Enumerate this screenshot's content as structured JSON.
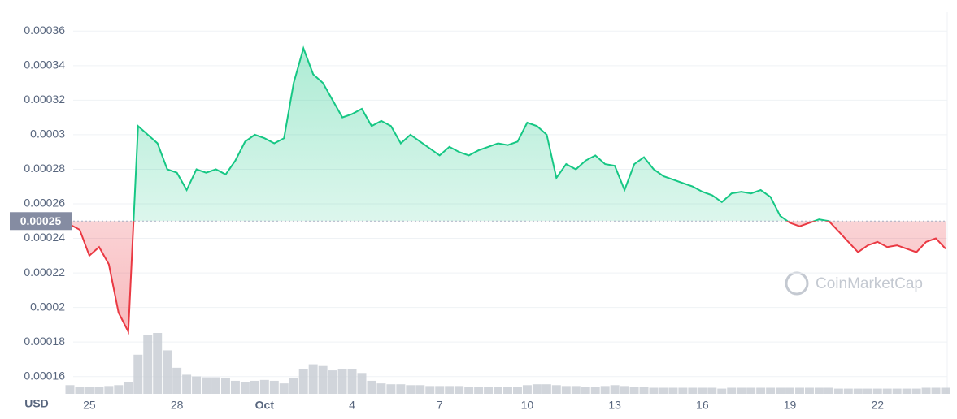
{
  "chart_data": {
    "type": "line",
    "currency": "USD",
    "watermark": "CoinMarketCap",
    "categories": [
      null,
      null,
      "25",
      null,
      null,
      null,
      null,
      null,
      null,
      null,
      null,
      "28",
      null,
      null,
      null,
      null,
      null,
      null,
      null,
      null,
      "Oct",
      null,
      null,
      null,
      null,
      null,
      null,
      null,
      null,
      "4",
      null,
      null,
      null,
      null,
      null,
      null,
      null,
      null,
      "7",
      null,
      null,
      null,
      null,
      null,
      null,
      null,
      null,
      "10",
      null,
      null,
      null,
      null,
      null,
      null,
      null,
      null,
      "13",
      null,
      null,
      null,
      null,
      null,
      null,
      null,
      null,
      "16",
      null,
      null,
      null,
      null,
      null,
      null,
      null,
      null,
      "19",
      null,
      null,
      null,
      null,
      null,
      null,
      null,
      null,
      "22",
      null,
      null,
      null,
      null,
      null,
      null,
      null
    ],
    "series": [
      {
        "name": "Price",
        "color": "#16c784",
        "down_color": "#ea3943",
        "values": [
          0.000248,
          0.000245,
          0.00023,
          0.000235,
          0.000225,
          0.000197,
          0.000186,
          0.000305,
          0.0003,
          0.000295,
          0.00028,
          0.000278,
          0.000268,
          0.00028,
          0.000278,
          0.00028,
          0.000277,
          0.000285,
          0.000296,
          0.0003,
          0.000298,
          0.000295,
          0.000298,
          0.00033,
          0.00035,
          0.000335,
          0.00033,
          0.00032,
          0.00031,
          0.000312,
          0.000315,
          0.000305,
          0.000308,
          0.000305,
          0.000295,
          0.0003,
          0.000296,
          0.000292,
          0.000288,
          0.000293,
          0.00029,
          0.000288,
          0.000291,
          0.000293,
          0.000295,
          0.000294,
          0.000296,
          0.000307,
          0.000305,
          0.0003,
          0.000275,
          0.000283,
          0.00028,
          0.000285,
          0.000288,
          0.000283,
          0.000282,
          0.000268,
          0.000283,
          0.000287,
          0.00028,
          0.000276,
          0.000274,
          0.000272,
          0.00027,
          0.000267,
          0.000265,
          0.000261,
          0.000266,
          0.000267,
          0.000266,
          0.000268,
          0.000264,
          0.000253,
          0.000249,
          0.000247,
          0.000249,
          0.000251,
          0.00025,
          0.000244,
          0.000238,
          0.000232,
          0.000236,
          0.000238,
          0.000235,
          0.000236,
          0.000234,
          0.000232,
          0.000238,
          0.00024,
          0.000234
        ]
      },
      {
        "name": "Volume",
        "color": "#c6cad2",
        "values": [
          10,
          8,
          8,
          8,
          9,
          10,
          14,
          45,
          68,
          70,
          50,
          30,
          22,
          20,
          19,
          19,
          18,
          15,
          14,
          15,
          16,
          15,
          12,
          18,
          28,
          34,
          32,
          27,
          28,
          28,
          24,
          15,
          12,
          11,
          11,
          10,
          10,
          9,
          9,
          9,
          9,
          8,
          8,
          8,
          8,
          8,
          8,
          10,
          11,
          11,
          10,
          9,
          9,
          8,
          8,
          9,
          10,
          9,
          8,
          8,
          7,
          7,
          7,
          7,
          7,
          7,
          7,
          6,
          7,
          7,
          7,
          7,
          7,
          7,
          7,
          7,
          7,
          7,
          7,
          6,
          6,
          6,
          6,
          6,
          6,
          6,
          6,
          6,
          7,
          7,
          7
        ]
      }
    ],
    "baseline": 0.00025,
    "ylim": [
      0.00015,
      0.00037
    ],
    "yticks": [
      0.00016,
      0.00018,
      0.0002,
      0.00022,
      0.00024,
      0.00026,
      0.00028,
      0.0003,
      0.00032,
      0.00034,
      0.00036
    ],
    "grid": true
  }
}
